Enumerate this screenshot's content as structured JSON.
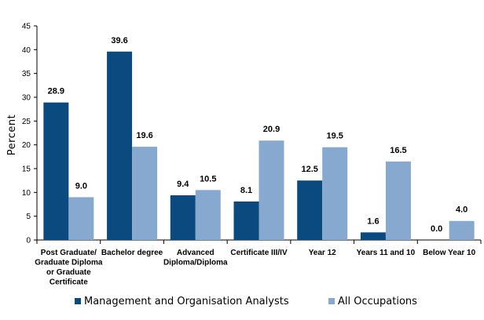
{
  "chart_data": {
    "type": "bar",
    "ylabel": "Percent",
    "ylim": [
      0,
      45
    ],
    "yticks": [
      0,
      5,
      10,
      15,
      20,
      25,
      30,
      35,
      40,
      45
    ],
    "grid": false,
    "legend_position": "bottom",
    "categories": [
      [
        "Post Graduate/",
        "Graduate Diploma",
        "or Graduate",
        "Certificate"
      ],
      [
        "Bachelor degree"
      ],
      [
        "Advanced",
        "Diploma/Diploma"
      ],
      [
        "Certificate III/IV"
      ],
      [
        "Year 12"
      ],
      [
        "Years 11 and 10"
      ],
      [
        "Below Year 10"
      ]
    ],
    "series": [
      {
        "name": "Management and Organisation Analysts",
        "color": "#0a4a7f",
        "values": [
          28.9,
          39.6,
          9.4,
          8.1,
          12.5,
          1.6,
          0.0
        ],
        "labels": [
          "28.9",
          "39.6",
          "9.4",
          "8.1",
          "12.5",
          "1.6",
          "0.0"
        ]
      },
      {
        "name": "All Occupations",
        "color": "#87a9d0",
        "values": [
          9.0,
          19.6,
          10.5,
          20.9,
          19.5,
          16.5,
          4.0
        ],
        "labels": [
          "9.0",
          "19.6",
          "10.5",
          "20.9",
          "19.5",
          "16.5",
          "4.0"
        ]
      }
    ]
  }
}
